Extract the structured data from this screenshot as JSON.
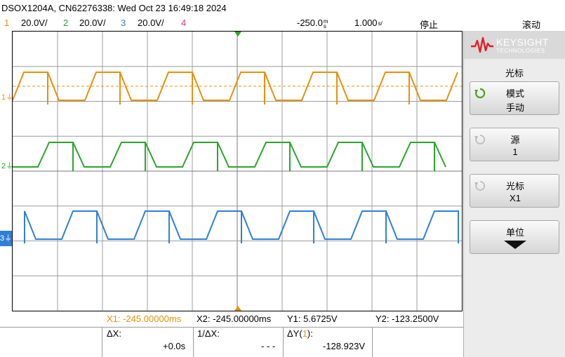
{
  "header": {
    "instrument_info": "DSOX1204A, CN62276338: Wed Oct 23 16:49:18 2024",
    "channels": [
      {
        "num": "1",
        "scale": "20.0V/",
        "color": "#e8900a"
      },
      {
        "num": "2",
        "scale": "20.0V/",
        "color": "#2aa52a"
      },
      {
        "num": "3",
        "scale": "20.0V/",
        "color": "#2f7fd8"
      },
      {
        "num": "4",
        "scale": "",
        "color": "#d63a8a"
      }
    ],
    "time_delay": "-250.0",
    "time_delay_unit": "s",
    "time_delay_prefix": "m",
    "time_scale": "1.000",
    "time_scale_unit": "s/",
    "run_state": "停止",
    "mode": "滚动"
  },
  "plot": {
    "grid_divisions_x": 10,
    "grid_divisions_y": 8,
    "markers": [
      {
        "label": "1",
        "channel": "ch1"
      },
      {
        "label": "2",
        "channel": "ch2"
      },
      {
        "label": "3",
        "channel": "ch3"
      }
    ]
  },
  "cursors": {
    "x1": "X1: -245.00000ms",
    "x2": "X2: -245.00000ms",
    "y1": "Y1:  5.6725V",
    "y2": "Y2: -123.2500V",
    "dx_label": "ΔX:",
    "dx_value": "+0.0s",
    "inv_dx_label": "1/ΔX:",
    "inv_dx_value": "- - -",
    "dy_label_prefix": "ΔY(",
    "dy_label_ch": "1",
    "dy_label_suffix": "):",
    "dy_value": "-128.923V"
  },
  "panel": {
    "brand_name": "KEYSIGHT",
    "brand_sub": "TECHNOLOGIES",
    "menu_title": "光标",
    "softkeys": [
      {
        "line1": "模式",
        "line2": "手动",
        "icon": "rotate-knob-icon",
        "active": true
      },
      {
        "line1": "源",
        "line2": "1",
        "icon": "rotate-knob-icon",
        "active": false
      },
      {
        "line1": "光标",
        "line2": "X1",
        "icon": "rotate-knob-icon",
        "active": false
      },
      {
        "line1": "单位",
        "line2": "",
        "icon": "arrow-down-icon",
        "active": false
      }
    ]
  }
}
